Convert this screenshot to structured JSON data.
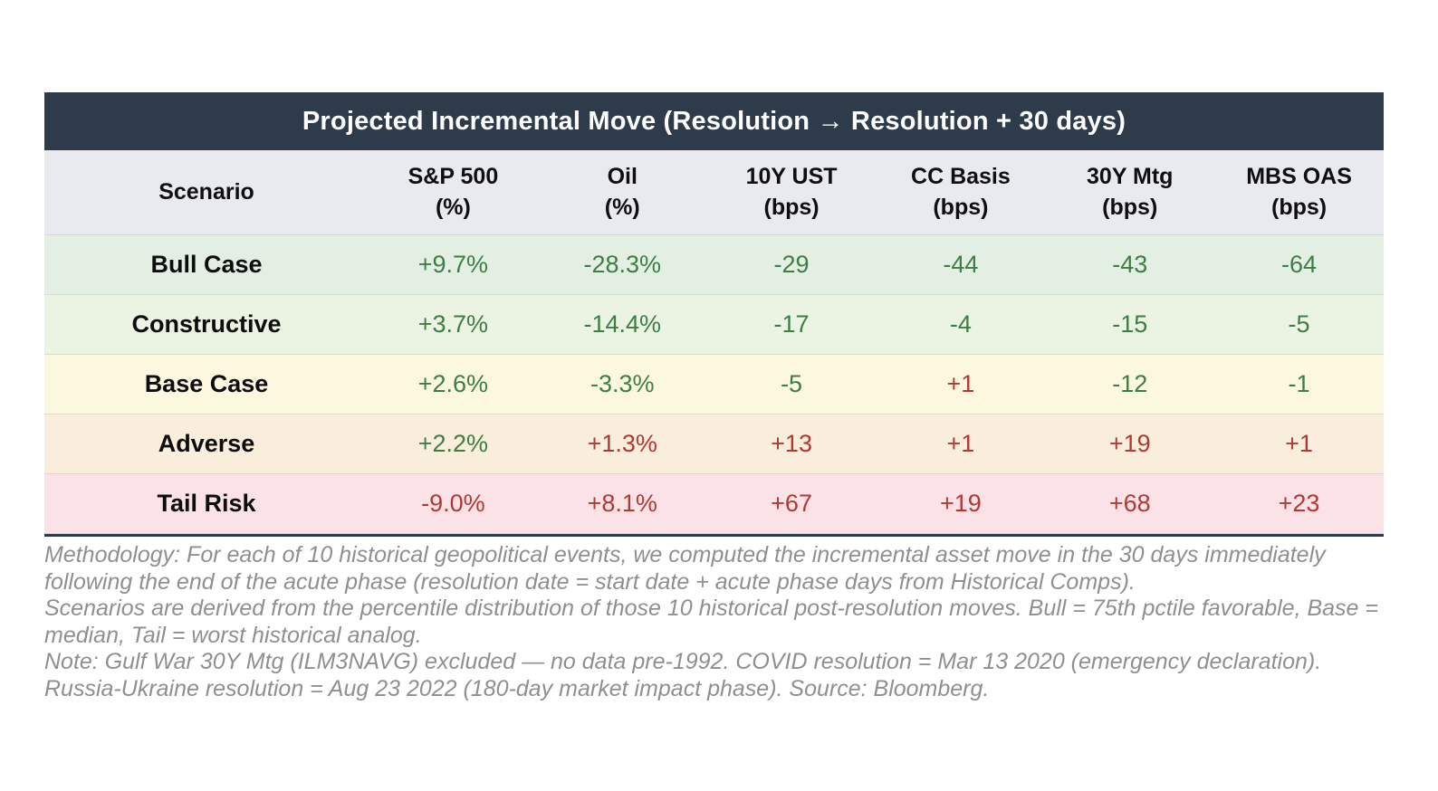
{
  "chart_data": {
    "type": "table",
    "title": "Projected Incremental Move (Resolution → Resolution + 30 days)",
    "columns": [
      {
        "label": "Scenario",
        "unit": ""
      },
      {
        "label": "S&P 500",
        "unit": "(%)"
      },
      {
        "label": "Oil",
        "unit": "(%)"
      },
      {
        "label": "10Y UST",
        "unit": "(bps)"
      },
      {
        "label": "CC Basis",
        "unit": "(bps)"
      },
      {
        "label": "30Y Mtg",
        "unit": "(bps)"
      },
      {
        "label": "MBS OAS",
        "unit": "(bps)"
      }
    ],
    "rows": [
      {
        "scenario": "Bull Case",
        "row_key": "bull",
        "cells": [
          {
            "text": "+9.7%",
            "tone": "green"
          },
          {
            "text": "-28.3%",
            "tone": "green"
          },
          {
            "text": "-29",
            "tone": "green"
          },
          {
            "text": "-44",
            "tone": "green"
          },
          {
            "text": "-43",
            "tone": "green"
          },
          {
            "text": "-64",
            "tone": "green"
          }
        ]
      },
      {
        "scenario": "Constructive",
        "row_key": "constructive",
        "cells": [
          {
            "text": "+3.7%",
            "tone": "green"
          },
          {
            "text": "-14.4%",
            "tone": "green"
          },
          {
            "text": "-17",
            "tone": "green"
          },
          {
            "text": "-4",
            "tone": "green"
          },
          {
            "text": "-15",
            "tone": "green"
          },
          {
            "text": "-5",
            "tone": "green"
          }
        ]
      },
      {
        "scenario": "Base Case",
        "row_key": "base",
        "cells": [
          {
            "text": "+2.6%",
            "tone": "green"
          },
          {
            "text": "-3.3%",
            "tone": "green"
          },
          {
            "text": "-5",
            "tone": "green"
          },
          {
            "text": "+1",
            "tone": "red"
          },
          {
            "text": "-12",
            "tone": "green"
          },
          {
            "text": "-1",
            "tone": "green"
          }
        ]
      },
      {
        "scenario": "Adverse",
        "row_key": "adverse",
        "cells": [
          {
            "text": "+2.2%",
            "tone": "green"
          },
          {
            "text": "+1.3%",
            "tone": "red"
          },
          {
            "text": "+13",
            "tone": "red"
          },
          {
            "text": "+1",
            "tone": "red"
          },
          {
            "text": "+19",
            "tone": "red"
          },
          {
            "text": "+1",
            "tone": "red"
          }
        ]
      },
      {
        "scenario": "Tail Risk",
        "row_key": "tail",
        "cells": [
          {
            "text": "-9.0%",
            "tone": "red"
          },
          {
            "text": "+8.1%",
            "tone": "red"
          },
          {
            "text": "+67",
            "tone": "red"
          },
          {
            "text": "+19",
            "tone": "red"
          },
          {
            "text": "+68",
            "tone": "red"
          },
          {
            "text": "+23",
            "tone": "red"
          }
        ]
      }
    ]
  },
  "footnotes": [
    "Methodology: For each of 10 historical geopolitical events, we computed the incremental asset move in the 30 days immediately following the end of the acute phase (resolution date = start date + acute phase days from Historical Comps).",
    "Scenarios are derived from the percentile distribution of those 10 historical post-resolution moves. Bull = 75th pctile favorable, Base = median, Tail = worst historical analog.",
    "Note: Gulf War 30Y Mtg (ILM3NAVG) excluded — no data pre-1992. COVID resolution = Mar 13 2020 (emergency declaration). Russia-Ukraine resolution = Aug 23 2022 (180-day market impact phase). Source: Bloomberg."
  ],
  "colors": {
    "title_bar_bg": "#2e3b4b",
    "header_row_bg": "#e8eaf0",
    "row_bull_bg": "#e4efe4",
    "row_constructive_bg": "#ebf3e2",
    "row_base_bg": "#fcf8e0",
    "row_adverse_bg": "#f9eddc",
    "row_tail_bg": "#fbe2e6",
    "positive_green": "#3e7d44",
    "negative_red": "#b23932",
    "footnote_gray": "#8f8f8f"
  }
}
